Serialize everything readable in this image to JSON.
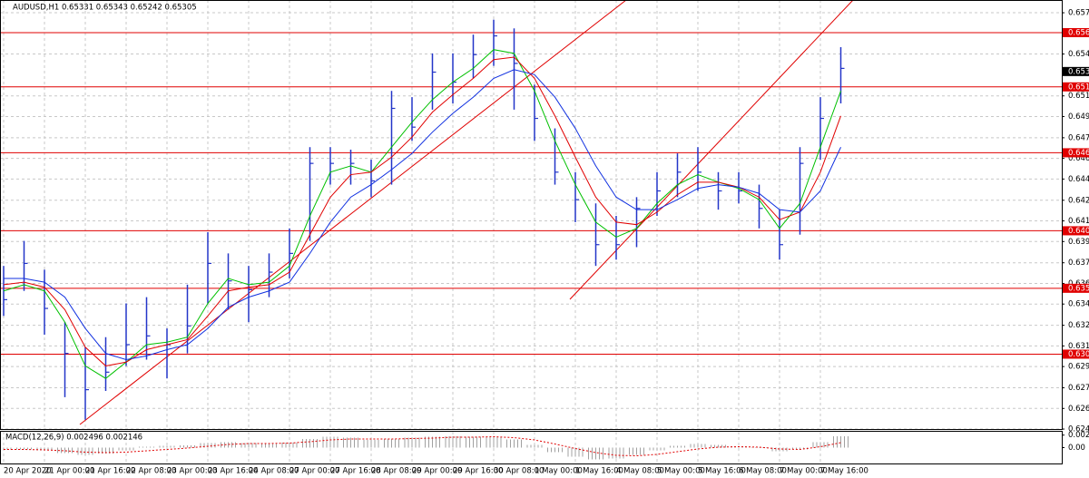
{
  "chart_data": {
    "type": "ohlc",
    "title": "AUDUSD,H1 0.65331 0.65343 0.65242 0.65305",
    "categories": [
      "20 Apr 2020",
      null,
      "21 Apr 00:00",
      null,
      "21 Apr 16:00",
      null,
      "22 Apr 08:00",
      null,
      "23 Apr 00:00",
      null,
      "23 Apr 16:00",
      null,
      "24 Apr 08:00",
      null,
      "27 Apr 00:00",
      null,
      "27 Apr 16:00",
      null,
      "28 Apr 08:00",
      null,
      "29 Apr 00:00",
      null,
      "29 Apr 16:00",
      null,
      "30 Apr 08:00",
      null,
      "1 May 00:00",
      null,
      "1 May 16:00",
      null,
      "4 May 08:00",
      null,
      "5 May 00:00",
      null,
      "5 May 16:00",
      null,
      "6 May 08:00",
      null,
      "7 May 00:00",
      null,
      "7 May 16:00",
      null
    ],
    "high": [
      0.6375,
      0.6395,
      0.6372,
      0.633,
      0.631,
      0.6318,
      0.6345,
      0.635,
      0.6325,
      0.636,
      0.6402,
      0.6385,
      0.6375,
      0.6385,
      0.6405,
      0.647,
      0.647,
      0.6468,
      0.646,
      0.6515,
      0.651,
      0.6545,
      0.6545,
      0.656,
      0.6572,
      0.6565,
      0.652,
      0.6485,
      0.645,
      0.6425,
      0.6415,
      0.643,
      0.645,
      0.6465,
      0.647,
      0.645,
      0.645,
      0.644,
      0.642,
      0.647,
      0.651,
      0.655
    ],
    "low": [
      0.6335,
      0.6355,
      0.632,
      0.627,
      0.6252,
      0.6275,
      0.6295,
      0.63,
      0.6285,
      0.6305,
      0.6345,
      0.634,
      0.633,
      0.635,
      0.6365,
      0.6395,
      0.644,
      0.644,
      0.643,
      0.644,
      0.6475,
      0.65,
      0.6505,
      0.6525,
      0.6535,
      0.65,
      0.6475,
      0.644,
      0.641,
      0.6375,
      0.638,
      0.639,
      0.6415,
      0.643,
      0.6435,
      0.642,
      0.6425,
      0.6405,
      0.638,
      0.64,
      0.646,
      0.6505
    ],
    "close": [
      0.6348,
      0.6377,
      0.6341,
      0.6305,
      0.6276,
      0.629,
      0.6312,
      0.6319,
      0.6312,
      0.6327,
      0.6377,
      0.6363,
      0.6356,
      0.637,
      0.6385,
      0.6457,
      0.6457,
      0.6457,
      0.6443,
      0.6501,
      0.6486,
      0.653,
      0.6522,
      0.6544,
      0.6559,
      0.6537,
      0.6493,
      0.645,
      0.6428,
      0.6392,
      0.6392,
      0.6421,
      0.6435,
      0.645,
      0.645,
      0.6435,
      0.6435,
      0.6421,
      0.6392,
      0.6457,
      0.6493,
      0.6533
    ],
    "bar_color": "#2335c8",
    "moving_averages": [
      {
        "color": "#00c000",
        "values": [
          0.6355,
          0.636,
          0.6355,
          0.633,
          0.6295,
          0.6285,
          0.6298,
          0.6312,
          0.6314,
          0.6318,
          0.6345,
          0.6365,
          0.636,
          0.6362,
          0.6375,
          0.6415,
          0.645,
          0.6455,
          0.645,
          0.647,
          0.649,
          0.6508,
          0.6522,
          0.6533,
          0.6548,
          0.6545,
          0.6515,
          0.6475,
          0.644,
          0.641,
          0.6398,
          0.6405,
          0.6425,
          0.644,
          0.6448,
          0.6442,
          0.6437,
          0.6428,
          0.6405,
          0.6425,
          0.647,
          0.6515
        ]
      },
      {
        "color": "#e00000",
        "values": [
          0.636,
          0.6362,
          0.6358,
          0.634,
          0.631,
          0.6295,
          0.6298,
          0.6308,
          0.6312,
          0.6316,
          0.6335,
          0.6355,
          0.6358,
          0.636,
          0.637,
          0.64,
          0.643,
          0.6448,
          0.645,
          0.6462,
          0.6478,
          0.6498,
          0.6512,
          0.6525,
          0.654,
          0.6542,
          0.6525,
          0.6495,
          0.6462,
          0.643,
          0.641,
          0.6408,
          0.6418,
          0.6432,
          0.6442,
          0.6442,
          0.6438,
          0.643,
          0.6412,
          0.6418,
          0.645,
          0.6495
        ]
      },
      {
        "color": "#1030e0",
        "values": [
          0.6365,
          0.6365,
          0.6362,
          0.635,
          0.6325,
          0.6305,
          0.63,
          0.6303,
          0.6308,
          0.6312,
          0.6325,
          0.6342,
          0.635,
          0.6355,
          0.6362,
          0.6385,
          0.641,
          0.643,
          0.644,
          0.6452,
          0.6465,
          0.6482,
          0.6497,
          0.651,
          0.6525,
          0.6532,
          0.6528,
          0.651,
          0.6485,
          0.6455,
          0.643,
          0.642,
          0.642,
          0.6428,
          0.6437,
          0.644,
          0.6438,
          0.6433,
          0.642,
          0.6418,
          0.6435,
          0.647
        ]
      }
    ],
    "levels": [
      0.65616,
      0.65182,
      0.64655,
      0.64031,
      0.63571,
      0.63044
    ],
    "level_color": "#e00000",
    "last_price": 0.65305,
    "ylim": [
      0.62438,
      0.65877
    ],
    "yticks": [
      0.65775,
      0.65445,
      {
        "value": 0.6511,
        "label": "0.65110"
      },
      0.64945,
      0.64775,
      {
        "value": 0.6461,
        "label": "0.64610"
      },
      0.64445,
      0.64275,
      {
        "value": 0.6411,
        "label": "0.64110"
      },
      0.63945,
      0.63775,
      {
        "value": 0.6361,
        "label": "0.63610"
      },
      0.63445,
      0.63275,
      {
        "value": 0.6311,
        "label": "0.63110"
      },
      0.62945,
      0.62775,
      {
        "value": 0.6261,
        "label": "0.62610"
      },
      0.62445
    ],
    "grid": true,
    "macd": {
      "label": "MACD(12,26,9) 0.002496 0.002146",
      "histogram": [
        -0.0005,
        -0.0004,
        -0.0006,
        -0.0012,
        -0.0016,
        -0.0013,
        -0.0006,
        0.0002,
        0.0004,
        0.0005,
        0.001,
        0.0012,
        0.001,
        0.0008,
        0.0011,
        0.0019,
        0.0024,
        0.0022,
        0.0017,
        0.0019,
        0.0022,
        0.0024,
        0.0025,
        0.0024,
        0.0024,
        0.0018,
        0.0006,
        -0.001,
        -0.002,
        -0.0026,
        -0.0024,
        -0.0016,
        -0.0006,
        0.0004,
        0.0008,
        0.0006,
        0.0003,
        -0.0001,
        -0.0008,
        -0.0004,
        0.0012,
        0.0025
      ],
      "signal": [
        -0.0004,
        -0.0004,
        -0.0005,
        -0.0007,
        -0.001,
        -0.0011,
        -0.001,
        -0.0007,
        -0.0004,
        -0.0001,
        0.0003,
        0.0007,
        0.0009,
        0.0009,
        0.001,
        0.0013,
        0.0017,
        0.0019,
        0.0019,
        0.0019,
        0.002,
        0.0021,
        0.0023,
        0.0023,
        0.0024,
        0.0022,
        0.0017,
        0.0008,
        -0.0002,
        -0.0011,
        -0.0017,
        -0.0018,
        -0.0015,
        -0.0009,
        -0.0003,
        0.0001,
        0.0002,
        0.0001,
        -0.0003,
        -0.0004,
        0.0002,
        0.0011
      ],
      "histogram_color": "#a0a0a0",
      "signal_color": "#e00000",
      "ylim": [
        -0.0035,
        0.0035
      ],
      "yticks": [
        0.002761,
        {
          "value": 0,
          "label": "0.00"
        }
      ]
    }
  }
}
